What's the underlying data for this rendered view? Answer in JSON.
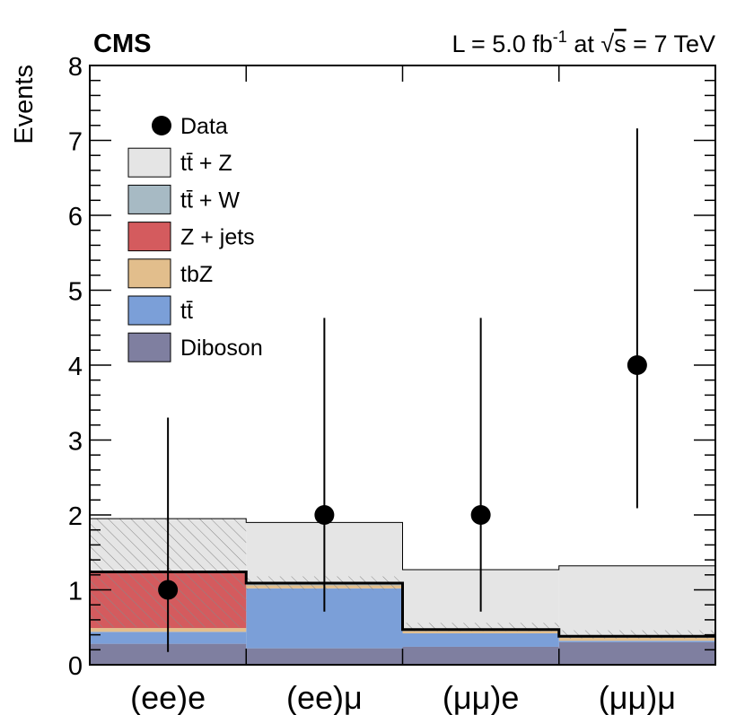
{
  "chart_data": {
    "type": "bar",
    "stacked": true,
    "experiment": "CMS",
    "luminosity_label": {
      "prefix": "L =  5.0 fb",
      "exponent": "-1",
      "middle": " at ",
      "sqrt_symbol": "√",
      "s_symbol": "s",
      "energy": " = 7 TeV"
    },
    "ylabel": "Events",
    "xlabel": "",
    "ylim": [
      0,
      8
    ],
    "y_ticks": [
      "0",
      "1",
      "2",
      "3",
      "4",
      "5",
      "6",
      "7",
      "8"
    ],
    "categories": [
      "(ee)e",
      "(ee)μ",
      "(μμ)e",
      "(μμ)μ"
    ],
    "legend_position": "top-left",
    "legend": [
      {
        "key": "data",
        "label": "Data"
      },
      {
        "key": "ttZ",
        "label": "tt̄ + Z"
      },
      {
        "key": "ttW",
        "label": "tt̄ + W"
      },
      {
        "key": "zjets",
        "label": "Z + jets"
      },
      {
        "key": "tbZ",
        "label": "tbZ"
      },
      {
        "key": "tt",
        "label": "tt̄"
      },
      {
        "key": "diboson",
        "label": "Diboson"
      }
    ],
    "series": [
      {
        "key": "diboson",
        "name": "Diboson",
        "color": "#7f7fa0",
        "values": [
          0.28,
          0.22,
          0.24,
          0.3
        ]
      },
      {
        "key": "tt",
        "name": "tt̄",
        "color": "#7b9fd8",
        "values": [
          0.16,
          0.8,
          0.18,
          0.02
        ]
      },
      {
        "key": "tbZ",
        "name": "tbZ",
        "color": "#e2be8c",
        "values": [
          0.05,
          0.04,
          0.03,
          0.04
        ]
      },
      {
        "key": "zjets",
        "name": "Z + jets",
        "color": "#d45b5e",
        "values": [
          0.74,
          0.0,
          0.0,
          0.0
        ]
      },
      {
        "key": "ttW",
        "name": "tt̄ + W",
        "color": "#a7bac4",
        "values": [
          0.01,
          0.03,
          0.02,
          0.02
        ]
      },
      {
        "key": "ttZ",
        "name": "tt̄ + Z",
        "color": "#e5e5e5",
        "values": [
          0.71,
          0.81,
          0.8,
          0.94
        ]
      }
    ],
    "uncertainty_band": [
      {
        "low": 0.5,
        "high": 1.95
      },
      {
        "low": 1.0,
        "high": 1.18
      },
      {
        "low": 0.45,
        "high": 0.56
      },
      {
        "low": 0.35,
        "high": 0.46
      }
    ],
    "data_points": [
      {
        "value": 1,
        "err_low": 0.83,
        "err_high": 2.3
      },
      {
        "value": 2,
        "err_low": 1.29,
        "err_high": 2.63
      },
      {
        "value": 2,
        "err_low": 1.29,
        "err_high": 2.63
      },
      {
        "value": 4,
        "err_low": 1.91,
        "err_high": 3.16
      }
    ]
  }
}
